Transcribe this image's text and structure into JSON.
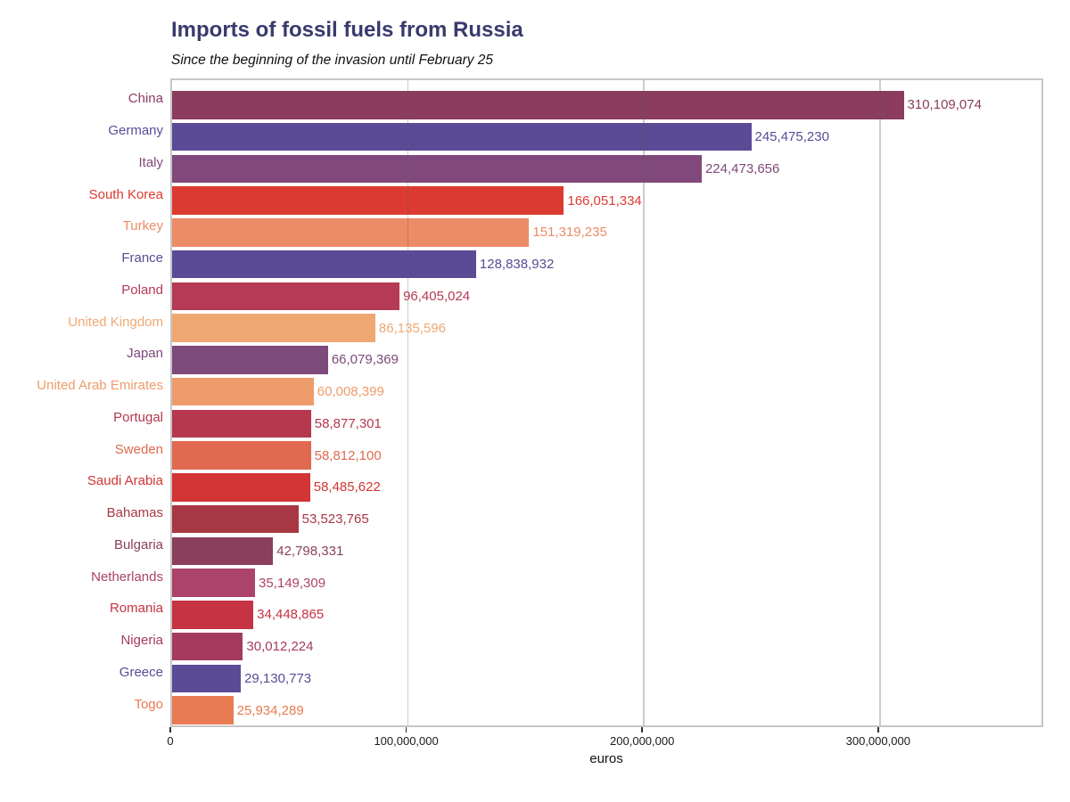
{
  "figure": {
    "title": "Imports of fossil fuels from Russia",
    "subtitle": "Since the beginning of the invasion until February 25"
  },
  "chart_data": {
    "type": "bar",
    "orientation": "horizontal",
    "title": "Imports of fossil fuels from Russia",
    "subtitle": "Since the beginning of the invasion until February 25",
    "xlabel": "euros",
    "ylabel": "",
    "xlim": [
      0,
      370000000
    ],
    "grid": "vertical-lines-at-xticks",
    "legend": "none",
    "x_ticks": [
      {
        "value": 0,
        "label": "0"
      },
      {
        "value": 100000000,
        "label": "100,000,000"
      },
      {
        "value": 200000000,
        "label": "200,000,000"
      },
      {
        "value": 300000000,
        "label": "300,000,000"
      }
    ],
    "categories": [
      "China",
      "Germany",
      "Italy",
      "South Korea",
      "Turkey",
      "France",
      "Poland",
      "United Kingdom",
      "Japan",
      "United Arab Emirates",
      "Portugal",
      "Sweden",
      "Saudi Arabia",
      "Bahamas",
      "Bulgaria",
      "Netherlands",
      "Romania",
      "Nigeria",
      "Greece",
      "Togo"
    ],
    "values": [
      310109074,
      245475230,
      224473656,
      166051334,
      151319235,
      128838932,
      96405024,
      86135596,
      66079369,
      60008399,
      58877301,
      58812100,
      58485622,
      53523765,
      42798331,
      35149309,
      34448865,
      30012224,
      29130773,
      25934289
    ],
    "value_labels": [
      "310,109,074",
      "245,475,230",
      "224,473,656",
      "166,051,334",
      "151,319,235",
      "128,838,932",
      "96,405,024",
      "86,135,596",
      "66,079,369",
      "60,008,399",
      "58,877,301",
      "58,812,100",
      "58,485,622",
      "53,523,765",
      "42,798,331",
      "35,149,309",
      "34,448,865",
      "30,012,224",
      "29,130,773",
      "25,934,289"
    ],
    "bar_colors": [
      "#8b3c5f",
      "#5b4b96",
      "#81497b",
      "#dc3b31",
      "#ec8c66",
      "#5b4b96",
      "#b43a55",
      "#f0a873",
      "#7d4a7c",
      "#ee9c6b",
      "#b5384f",
      "#e0694f",
      "#d23534",
      "#a83744",
      "#8a3f5c",
      "#ab436a",
      "#c63342",
      "#a43a5e",
      "#5b4b96",
      "#e87b52"
    ],
    "category_label_colors_match_bars": true,
    "value_label_colors_match_bars": true
  },
  "style": {
    "title_color": "#393a6d",
    "subtitle_color": "#111111",
    "frame_color": "#c6c6c6",
    "gridline_color": "rgba(90,90,90,0.30)",
    "tick_mark_color": "#333333",
    "tick_label_color": "#1a1a1a",
    "background": "#ffffff"
  }
}
